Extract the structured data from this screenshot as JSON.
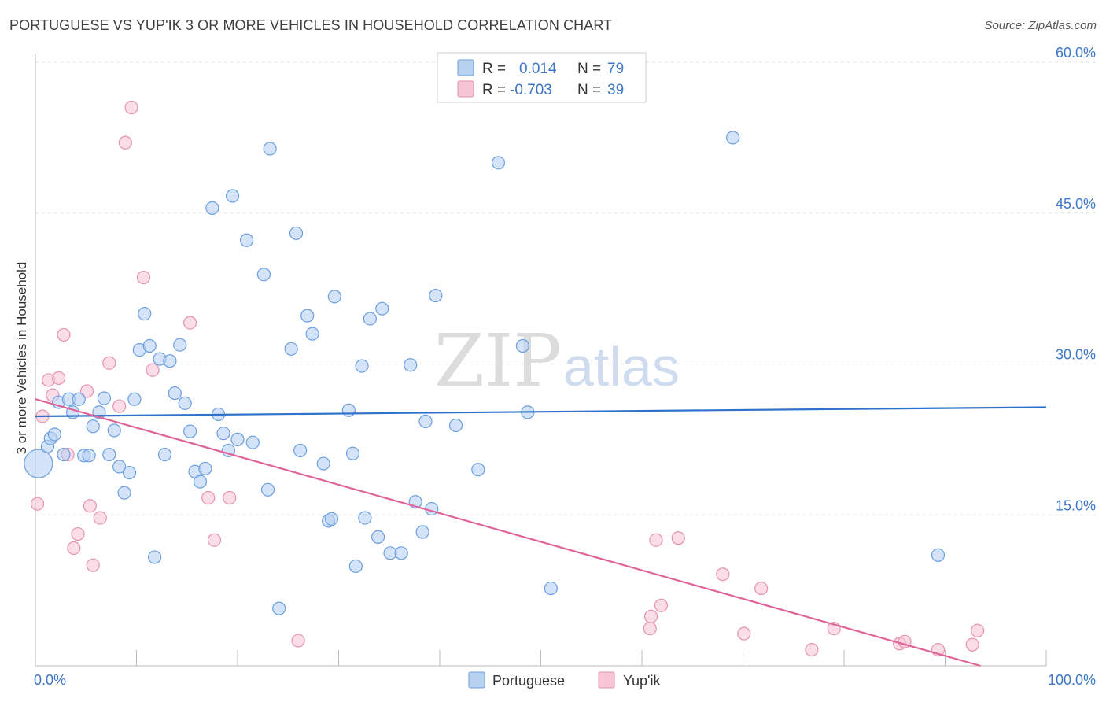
{
  "title": "PORTUGUESE VS YUP'IK 3 OR MORE VEHICLES IN HOUSEHOLD CORRELATION CHART",
  "source": "Source: ZipAtlas.com",
  "watermark": {
    "zip": "ZIP",
    "atlas": "atlas"
  },
  "legend_top": [
    {
      "r_label": "R =",
      "r_value": "0.014",
      "n_label": "N =",
      "n_value": "79"
    },
    {
      "r_label": "R =",
      "r_value": "-0.703",
      "n_label": "N =",
      "n_value": "39"
    }
  ],
  "chart_data": {
    "type": "scatter",
    "title": "PORTUGUESE VS YUP'IK 3 OR MORE VEHICLES IN HOUSEHOLD CORRELATION CHART",
    "xlabel": "",
    "ylabel": "3 or more Vehicles in Household",
    "xlim": [
      0,
      100
    ],
    "ylim": [
      0,
      60
    ],
    "x_tick_labels": [
      "0.0%",
      "100.0%"
    ],
    "y_tick_values": [
      15,
      30,
      45,
      60
    ],
    "y_tick_labels": [
      "15.0%",
      "30.0%",
      "45.0%",
      "60.0%"
    ],
    "grid": true,
    "legend_position": "top-center",
    "colors": {
      "Portuguese": {
        "fill": "#b8d1f1",
        "stroke": "#6a9fe0",
        "line": "#2f72cc"
      },
      "Yup'ik": {
        "fill": "#f6c6d6",
        "stroke": "#e592b0",
        "line": "#e0649a"
      }
    },
    "series": [
      {
        "name": "Portuguese",
        "trend": {
          "x": [
            0,
            100
          ],
          "y": [
            24.8,
            25.7
          ]
        },
        "points": [
          {
            "x": 0.3,
            "y": 20.1,
            "big": true
          },
          {
            "x": 1.2,
            "y": 21.8
          },
          {
            "x": 1.5,
            "y": 22.6
          },
          {
            "x": 1.9,
            "y": 23.0
          },
          {
            "x": 2.3,
            "y": 26.2
          },
          {
            "x": 2.8,
            "y": 21.0
          },
          {
            "x": 3.3,
            "y": 26.5
          },
          {
            "x": 3.7,
            "y": 25.2
          },
          {
            "x": 4.3,
            "y": 26.5
          },
          {
            "x": 4.8,
            "y": 20.9
          },
          {
            "x": 5.3,
            "y": 20.9
          },
          {
            "x": 5.7,
            "y": 23.8
          },
          {
            "x": 6.3,
            "y": 25.2
          },
          {
            "x": 6.8,
            "y": 26.6
          },
          {
            "x": 7.3,
            "y": 21.0
          },
          {
            "x": 7.8,
            "y": 23.4
          },
          {
            "x": 8.3,
            "y": 19.8
          },
          {
            "x": 8.8,
            "y": 17.2
          },
          {
            "x": 9.3,
            "y": 19.2
          },
          {
            "x": 9.8,
            "y": 26.5
          },
          {
            "x": 10.3,
            "y": 31.4
          },
          {
            "x": 10.8,
            "y": 35.0
          },
          {
            "x": 11.3,
            "y": 31.8
          },
          {
            "x": 11.8,
            "y": 10.8
          },
          {
            "x": 12.3,
            "y": 30.5
          },
          {
            "x": 12.8,
            "y": 21.0
          },
          {
            "x": 13.3,
            "y": 30.3
          },
          {
            "x": 13.8,
            "y": 27.1
          },
          {
            "x": 14.3,
            "y": 31.9
          },
          {
            "x": 14.8,
            "y": 26.1
          },
          {
            "x": 15.3,
            "y": 23.3
          },
          {
            "x": 15.8,
            "y": 19.3
          },
          {
            "x": 16.3,
            "y": 18.3
          },
          {
            "x": 16.8,
            "y": 19.6
          },
          {
            "x": 17.5,
            "y": 45.5
          },
          {
            "x": 18.1,
            "y": 25.0
          },
          {
            "x": 18.6,
            "y": 23.1
          },
          {
            "x": 19.1,
            "y": 21.4
          },
          {
            "x": 19.5,
            "y": 46.7
          },
          {
            "x": 20.0,
            "y": 22.5
          },
          {
            "x": 20.9,
            "y": 42.3
          },
          {
            "x": 21.5,
            "y": 22.2
          },
          {
            "x": 22.6,
            "y": 38.9
          },
          {
            "x": 23.0,
            "y": 17.5
          },
          {
            "x": 23.2,
            "y": 51.4
          },
          {
            "x": 24.1,
            "y": 5.7
          },
          {
            "x": 25.3,
            "y": 31.5
          },
          {
            "x": 25.8,
            "y": 43.0
          },
          {
            "x": 26.2,
            "y": 21.4
          },
          {
            "x": 26.9,
            "y": 34.8
          },
          {
            "x": 27.4,
            "y": 33.0
          },
          {
            "x": 28.5,
            "y": 20.1
          },
          {
            "x": 29.0,
            "y": 14.4
          },
          {
            "x": 29.3,
            "y": 14.6
          },
          {
            "x": 29.6,
            "y": 36.7
          },
          {
            "x": 31.0,
            "y": 25.4
          },
          {
            "x": 31.4,
            "y": 21.1
          },
          {
            "x": 31.7,
            "y": 9.9
          },
          {
            "x": 32.3,
            "y": 29.8
          },
          {
            "x": 32.6,
            "y": 14.7
          },
          {
            "x": 33.1,
            "y": 34.5
          },
          {
            "x": 33.9,
            "y": 12.8
          },
          {
            "x": 34.3,
            "y": 35.5
          },
          {
            "x": 35.1,
            "y": 11.2
          },
          {
            "x": 36.2,
            "y": 11.2
          },
          {
            "x": 37.1,
            "y": 29.9
          },
          {
            "x": 37.6,
            "y": 16.3
          },
          {
            "x": 38.3,
            "y": 13.3
          },
          {
            "x": 38.6,
            "y": 24.3
          },
          {
            "x": 39.2,
            "y": 15.6
          },
          {
            "x": 39.6,
            "y": 36.8
          },
          {
            "x": 41.6,
            "y": 23.9
          },
          {
            "x": 43.8,
            "y": 19.5
          },
          {
            "x": 45.8,
            "y": 50.0
          },
          {
            "x": 48.2,
            "y": 31.8
          },
          {
            "x": 48.7,
            "y": 25.2
          },
          {
            "x": 51.0,
            "y": 7.7
          },
          {
            "x": 69.0,
            "y": 52.5
          },
          {
            "x": 89.3,
            "y": 11.0
          }
        ]
      },
      {
        "name": "Yup'ik",
        "trend": {
          "x": [
            0,
            93.5
          ],
          "y": [
            26.5,
            0
          ]
        },
        "points": [
          {
            "x": 0.2,
            "y": 16.1
          },
          {
            "x": 0.7,
            "y": 24.8
          },
          {
            "x": 1.3,
            "y": 28.4
          },
          {
            "x": 1.7,
            "y": 26.9
          },
          {
            "x": 2.3,
            "y": 28.6
          },
          {
            "x": 2.8,
            "y": 32.9
          },
          {
            "x": 3.2,
            "y": 21.0
          },
          {
            "x": 3.8,
            "y": 11.7
          },
          {
            "x": 4.2,
            "y": 13.1
          },
          {
            "x": 5.1,
            "y": 27.3
          },
          {
            "x": 5.4,
            "y": 15.9
          },
          {
            "x": 5.7,
            "y": 10.0
          },
          {
            "x": 6.4,
            "y": 14.7
          },
          {
            "x": 7.3,
            "y": 30.1
          },
          {
            "x": 8.3,
            "y": 25.8
          },
          {
            "x": 8.9,
            "y": 52.0
          },
          {
            "x": 9.5,
            "y": 55.5
          },
          {
            "x": 10.7,
            "y": 38.6
          },
          {
            "x": 11.6,
            "y": 29.4
          },
          {
            "x": 15.3,
            "y": 34.1
          },
          {
            "x": 17.1,
            "y": 16.7
          },
          {
            "x": 17.7,
            "y": 12.5
          },
          {
            "x": 19.2,
            "y": 16.7
          },
          {
            "x": 26.0,
            "y": 2.5
          },
          {
            "x": 60.8,
            "y": 3.7
          },
          {
            "x": 60.9,
            "y": 4.9
          },
          {
            "x": 61.4,
            "y": 12.5
          },
          {
            "x": 61.9,
            "y": 6.0
          },
          {
            "x": 63.6,
            "y": 12.7
          },
          {
            "x": 68.0,
            "y": 9.1
          },
          {
            "x": 70.1,
            "y": 3.2
          },
          {
            "x": 71.8,
            "y": 7.7
          },
          {
            "x": 76.8,
            "y": 1.6
          },
          {
            "x": 79.0,
            "y": 3.7
          },
          {
            "x": 85.5,
            "y": 2.2
          },
          {
            "x": 86.0,
            "y": 2.4
          },
          {
            "x": 89.3,
            "y": 1.6
          },
          {
            "x": 92.7,
            "y": 2.1
          },
          {
            "x": 93.2,
            "y": 3.5
          }
        ]
      }
    ]
  },
  "bottom_legend": [
    "Portuguese",
    "Yup'ik"
  ]
}
